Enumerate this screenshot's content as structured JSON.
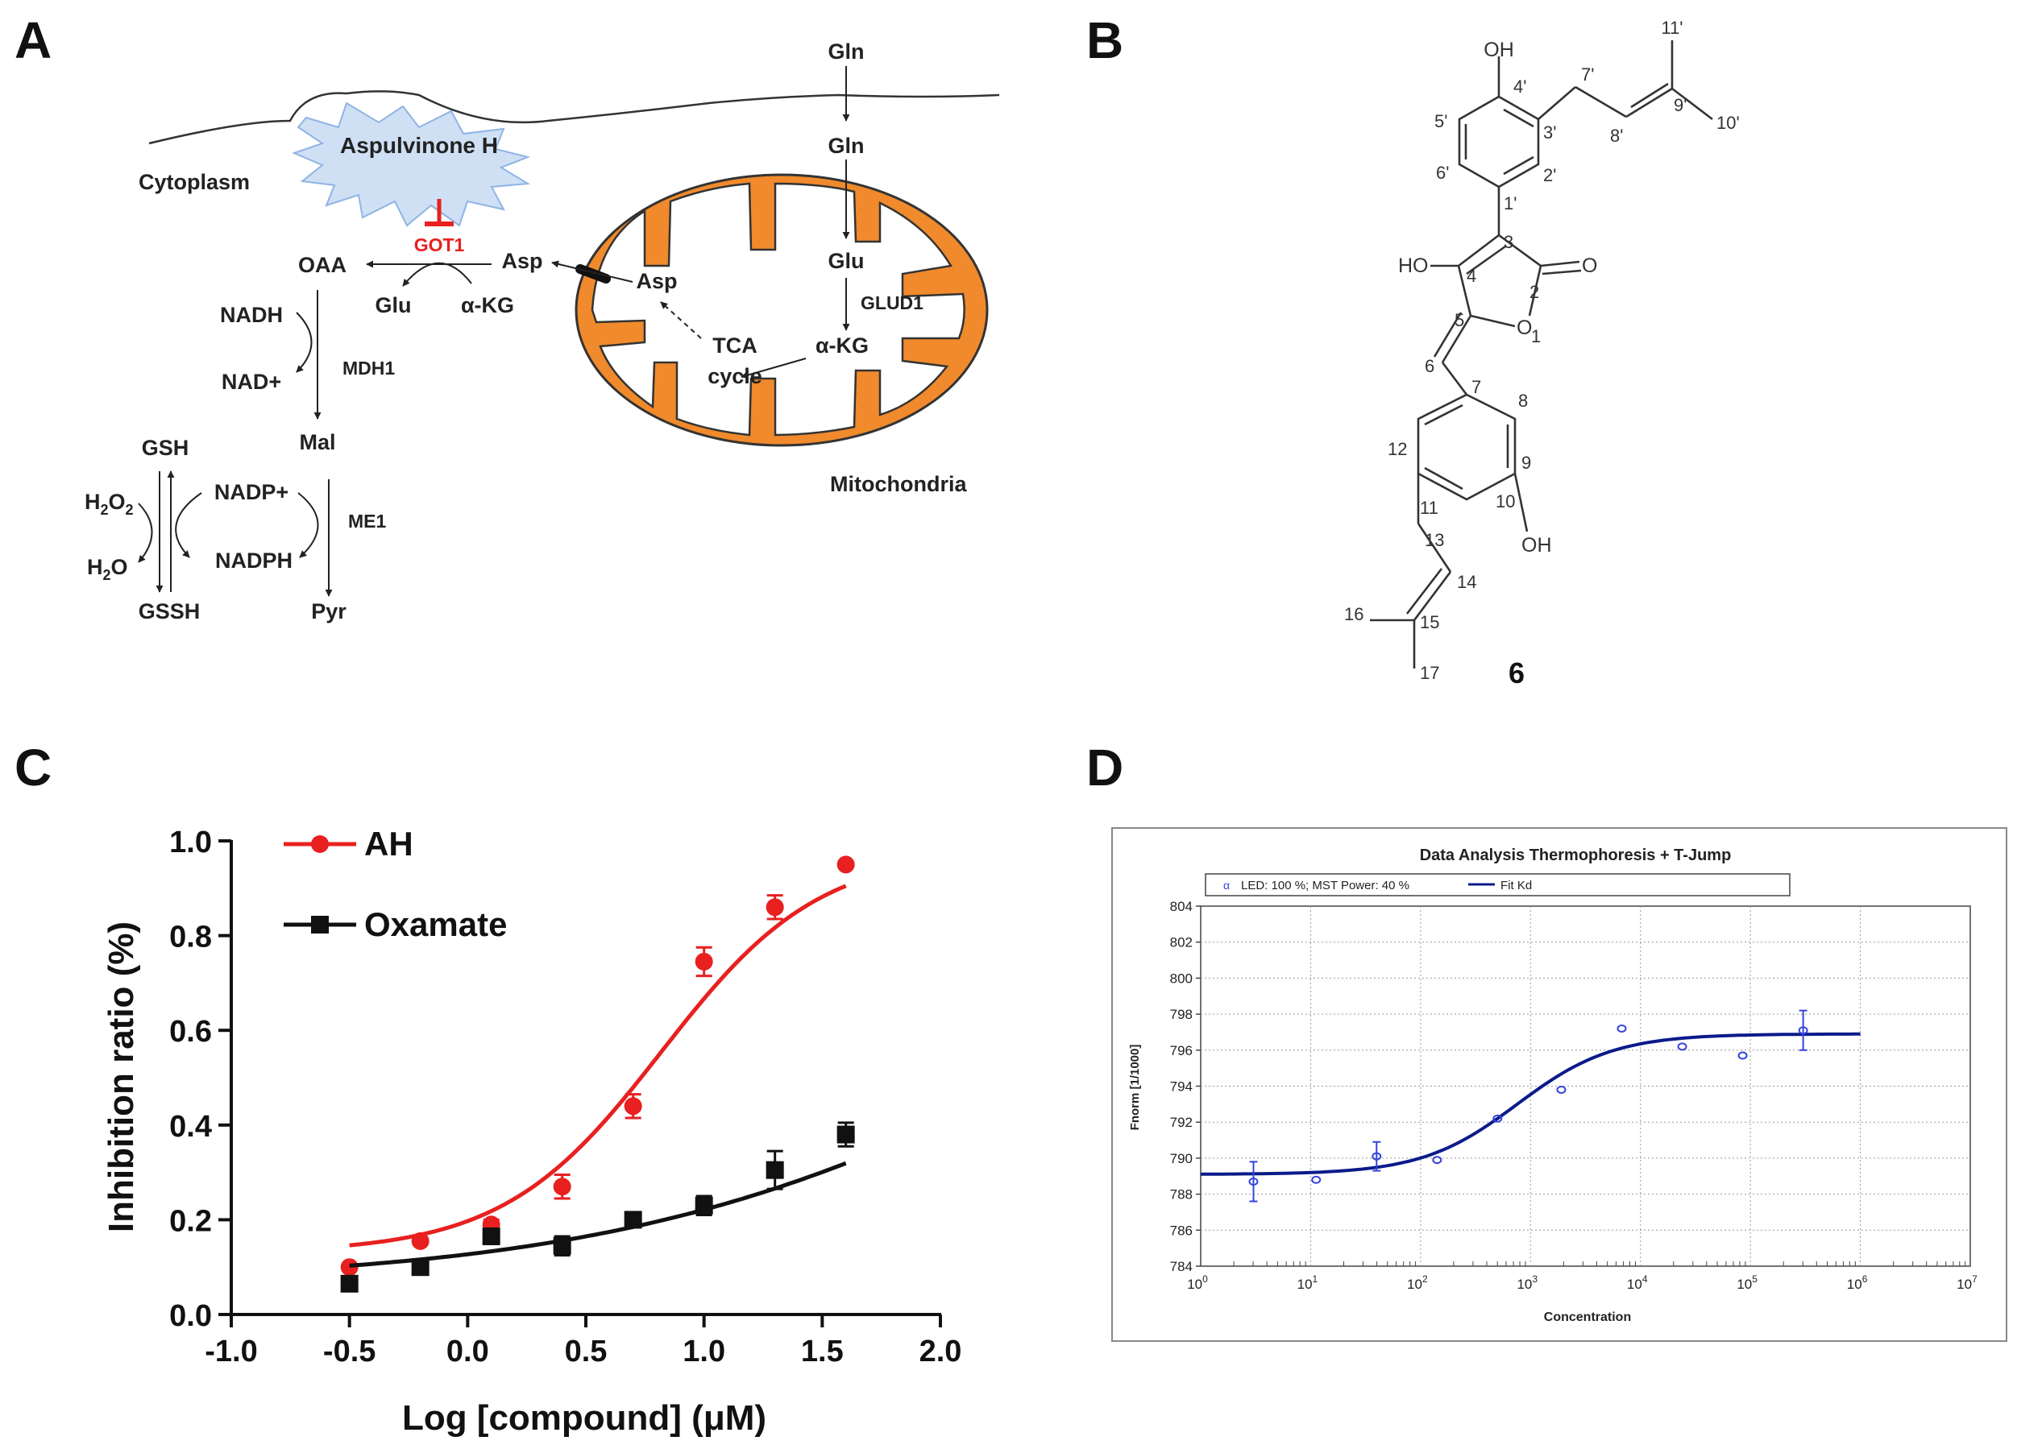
{
  "figure": {
    "panel_labels": [
      "A",
      "B",
      "C",
      "D"
    ]
  },
  "panel_a": {
    "inhibitor": "Aspulvinone H",
    "enzyme": "GOT1",
    "compartments": {
      "cytoplasm": "Cytoplasm",
      "mitochondria": "Mitochondria"
    },
    "metabolites": {
      "gln_outside": "Gln",
      "gln_inside": "Gln",
      "glu_mito": "Glu",
      "glud1": "GLUD1",
      "akg_mito": "α-KG",
      "tca": "TCA",
      "cycle": "cycle",
      "asp_mito": "Asp",
      "asp_cyto": "Asp",
      "oaa": "OAA",
      "glu_cyto": "Glu",
      "akg_cyto": "α-KG",
      "nadh": "NADH",
      "nad": "NAD+",
      "mdh1": "MDH1",
      "mal": "Mal",
      "gsh": "GSH",
      "nadp": "NADP+",
      "me1": "ME1",
      "h2o2_main": "H",
      "h2o2_sub": "2",
      "h2o2_o": "O",
      "h2o2_sub2": "2",
      "h2o_main": "H",
      "h2o_sub": "2",
      "h2o_o": "O",
      "nadph": "NADPH",
      "gssh": "GSSH",
      "pyr": "Pyr"
    }
  },
  "panel_b": {
    "compound_number": "6",
    "atom_labels": {
      "oh_top": "OH",
      "oh_bottom": "OH",
      "ho": "HO",
      "o_carbonyl": "O",
      "ring_o": "O",
      "l11p": "11'",
      "l4p": "4'",
      "l7p": "7'",
      "l5p": "5'",
      "l3p": "3'",
      "l8p": "8'",
      "l9p": "9'",
      "l10p": "10'",
      "l6p": "6'",
      "l2p": "2'",
      "l1p": "1'",
      "l3": "3",
      "l4": "4",
      "l2": "2",
      "l5": "5",
      "l1": "1",
      "l6": "6",
      "l7": "7",
      "l8": "8",
      "l12": "12",
      "l9": "9",
      "l10": "10",
      "l11": "11",
      "l13": "13",
      "l14": "14",
      "l15": "15",
      "l16": "16",
      "l17": "17"
    }
  },
  "panel_c": {
    "chart_data": {
      "type": "scatter",
      "title": "",
      "xlabel": "Log [compound] (μM)",
      "ylabel": "Inhibition ratio (%)",
      "xlim": [
        -1.0,
        2.0
      ],
      "ylim": [
        0.0,
        1.0
      ],
      "xticks": [
        "-1.0",
        "-0.5",
        "0.0",
        "0.5",
        "1.0",
        "1.5",
        "2.0"
      ],
      "yticks": [
        "0.0",
        "0.2",
        "0.4",
        "0.6",
        "0.8",
        "1.0"
      ],
      "legend_position": "top-left",
      "series": [
        {
          "name": "AH",
          "color": "#e8201f",
          "marker": "circle",
          "x": [
            -0.5,
            -0.2,
            0.1,
            0.4,
            0.7,
            1.0,
            1.3,
            1.6
          ],
          "y": [
            0.1,
            0.155,
            0.19,
            0.27,
            0.44,
            0.745,
            0.86,
            0.95
          ],
          "err": [
            0.0,
            0.0,
            0.01,
            0.025,
            0.025,
            0.03,
            0.025,
            0.0
          ],
          "fit": {
            "bottom": 0.13,
            "top": 0.98,
            "logEC50": 0.82,
            "hill": 1.3
          }
        },
        {
          "name": "Oxamate",
          "color": "#111111",
          "marker": "square",
          "x": [
            -0.5,
            -0.2,
            0.1,
            0.4,
            0.7,
            1.0,
            1.3,
            1.6
          ],
          "y": [
            0.065,
            0.1,
            0.165,
            0.145,
            0.2,
            0.23,
            0.305,
            0.38
          ],
          "err": [
            0.015,
            0.0,
            0.015,
            0.02,
            0.0,
            0.02,
            0.04,
            0.025
          ],
          "fit": {
            "bottom": 0.065,
            "top": 1.0,
            "logEC50": 2.55,
            "hill": 0.45
          }
        }
      ]
    }
  },
  "panel_d": {
    "chart_data": {
      "type": "scatter",
      "title": "Data Analysis Thermophoresis + T-Jump",
      "xlabel": "Concentration",
      "ylabel": "Fnorm [1/1000]",
      "xscale": "log",
      "xlim_exponent": [
        0,
        7
      ],
      "ylim": [
        784,
        804
      ],
      "yticks": [
        "784",
        "786",
        "788",
        "790",
        "792",
        "794",
        "796",
        "798",
        "800",
        "802",
        "804"
      ],
      "xtick_base": "10",
      "xtick_exponents": [
        "0",
        "1",
        "2",
        "3",
        "4",
        "5",
        "6",
        "7"
      ],
      "legend_position": "top",
      "legend": {
        "point_symbol": "α",
        "point_label": "LED: 100 %; MST Power: 40 %",
        "line_label": "Fit Kd"
      },
      "series": [
        {
          "name": "LED: 100 %; MST Power: 40 %",
          "color": "#3344dd",
          "marker": "open",
          "log10_x": [
            0.48,
            1.05,
            1.6,
            2.15,
            2.7,
            3.28,
            3.83,
            4.38,
            4.93,
            5.48
          ],
          "y": [
            788.7,
            788.8,
            790.1,
            789.9,
            792.2,
            793.8,
            797.2,
            796.2,
            795.7,
            797.1
          ],
          "err": [
            1.1,
            0.0,
            0.8,
            0.0,
            0.0,
            0.0,
            0.0,
            0.0,
            0.0,
            1.1
          ]
        },
        {
          "name": "Fit Kd",
          "color": "#0b1b8a",
          "fit": {
            "bottom": 789.1,
            "top": 796.9,
            "log10_kd": 2.88,
            "hill": 1.0,
            "log10_range": [
              0,
              6
            ]
          }
        }
      ]
    }
  }
}
